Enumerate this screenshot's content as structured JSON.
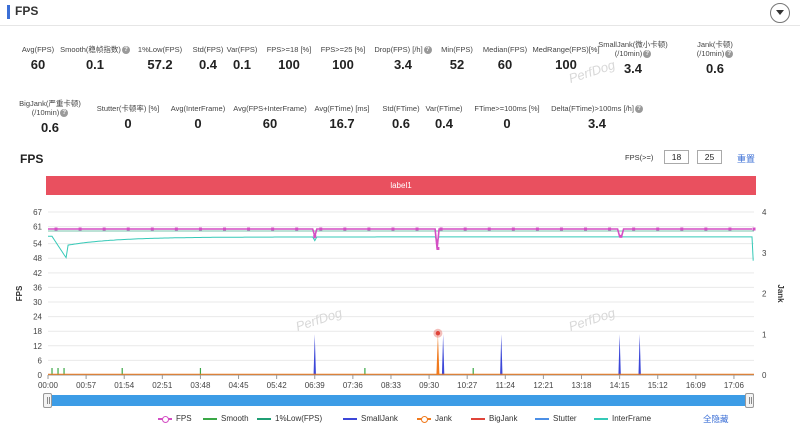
{
  "header": {
    "title": "FPS"
  },
  "stats_row1": [
    {
      "label": "Avg(FPS)",
      "value": "60",
      "help": false
    },
    {
      "label": "Smooth(稳帧指数)",
      "value": "0.1",
      "help": true
    },
    {
      "label": "1%Low(FPS)",
      "value": "57.2",
      "help": false
    },
    {
      "label": "Std(FPS)",
      "value": "0.4",
      "help": false
    },
    {
      "label": "Var(FPS)",
      "value": "0.1",
      "help": false
    },
    {
      "label": "FPS>=18 [%]",
      "value": "100",
      "help": false
    },
    {
      "label": "FPS>=25 [%]",
      "value": "100",
      "help": false
    },
    {
      "label": "Drop(FPS) [/h]",
      "value": "3.4",
      "help": true
    },
    {
      "label": "Min(FPS)",
      "value": "52",
      "help": false
    },
    {
      "label": "Median(FPS)",
      "value": "60",
      "help": false
    },
    {
      "label": "MedRange(FPS)[%]",
      "value": "100",
      "help": false
    },
    {
      "label": "SmallJank(微小卡顿)",
      "label2": "(/10min)",
      "value": "3.4",
      "help": true
    },
    {
      "label": "Jank(卡顿)",
      "label2": "(/10min)",
      "value": "0.6",
      "help": true
    }
  ],
  "stats_row2": [
    {
      "label": "BigJank(严重卡顿)",
      "label2": "(/10min)",
      "value": "0.6",
      "help": true
    },
    {
      "label": "Stutter(卡顿率) [%]",
      "value": "0",
      "help": false
    },
    {
      "label": "Avg(InterFrame)",
      "value": "0",
      "help": false
    },
    {
      "label": "Avg(FPS+InterFrame)",
      "value": "60",
      "help": false
    },
    {
      "label": "Avg(FTime) [ms]",
      "value": "16.7",
      "help": false
    },
    {
      "label": "Std(FTime)",
      "value": "0.6",
      "help": false
    },
    {
      "label": "Var(FTime)",
      "value": "0.4",
      "help": false
    },
    {
      "label": "FTime>=100ms [%]",
      "value": "0",
      "help": false
    },
    {
      "label": "Delta(FTime)>100ms [/h]",
      "value": "3.4",
      "help": true
    }
  ],
  "chart": {
    "title": "FPS",
    "threshold_label": "FPS(>=)",
    "threshold1": "18",
    "threshold2": "25",
    "reset_label": "重置",
    "band_label": "label1",
    "hide_all_label": "全隐藏",
    "watermark": "PerfDog"
  },
  "chart_data": {
    "type": "line",
    "ylabel": "FPS",
    "y2label": "Jank",
    "ylim": [
      0,
      67
    ],
    "y2lim": [
      0,
      4
    ],
    "yticks": [
      "67",
      "61",
      "54",
      "48",
      "42",
      "36",
      "30",
      "24",
      "18",
      "12",
      "6",
      "0"
    ],
    "y2ticks": [
      "4",
      "3",
      "2",
      "1",
      "0"
    ],
    "xticks": [
      "00:00",
      "00:57",
      "01:54",
      "02:51",
      "03:48",
      "04:45",
      "05:42",
      "06:39",
      "07:36",
      "08:33",
      "09:30",
      "10:27",
      "11:24",
      "12:21",
      "13:18",
      "14:15",
      "15:12",
      "16:09",
      "17:06"
    ],
    "series": [
      {
        "name": "FPS",
        "color": "#d44fc4",
        "marker": true
      },
      {
        "name": "Smooth",
        "color": "#3aa846"
      },
      {
        "name": "1%Low(FPS)",
        "color": "#1f9e74"
      },
      {
        "name": "SmallJank",
        "color": "#3c47d8"
      },
      {
        "name": "Jank",
        "color": "#f07a1e",
        "marker": true
      },
      {
        "name": "BigJank",
        "color": "#e0443a"
      },
      {
        "name": "Stutter",
        "color": "#4c8fe6"
      },
      {
        "name": "InterFrame",
        "color": "#35c9b7"
      }
    ],
    "fps_base": 60,
    "fps_dips": [
      [
        6.65,
        57
      ],
      [
        9.72,
        52
      ],
      [
        14.28,
        57
      ]
    ],
    "interframe_base": 57,
    "smalljank_spikes": [
      [
        6.65,
        1
      ],
      [
        9.85,
        1
      ],
      [
        11.3,
        1
      ],
      [
        14.25,
        1
      ],
      [
        14.75,
        1
      ]
    ],
    "jank_spikes": [
      [
        9.72,
        1
      ]
    ],
    "smooth_spikes": [
      [
        0.1,
        0.1
      ],
      [
        0.25,
        0.1
      ],
      [
        0.4,
        0.1
      ],
      [
        1.85,
        0.1
      ],
      [
        3.8,
        0.1
      ],
      [
        7.9,
        0.1
      ],
      [
        10.6,
        0.1
      ]
    ]
  }
}
